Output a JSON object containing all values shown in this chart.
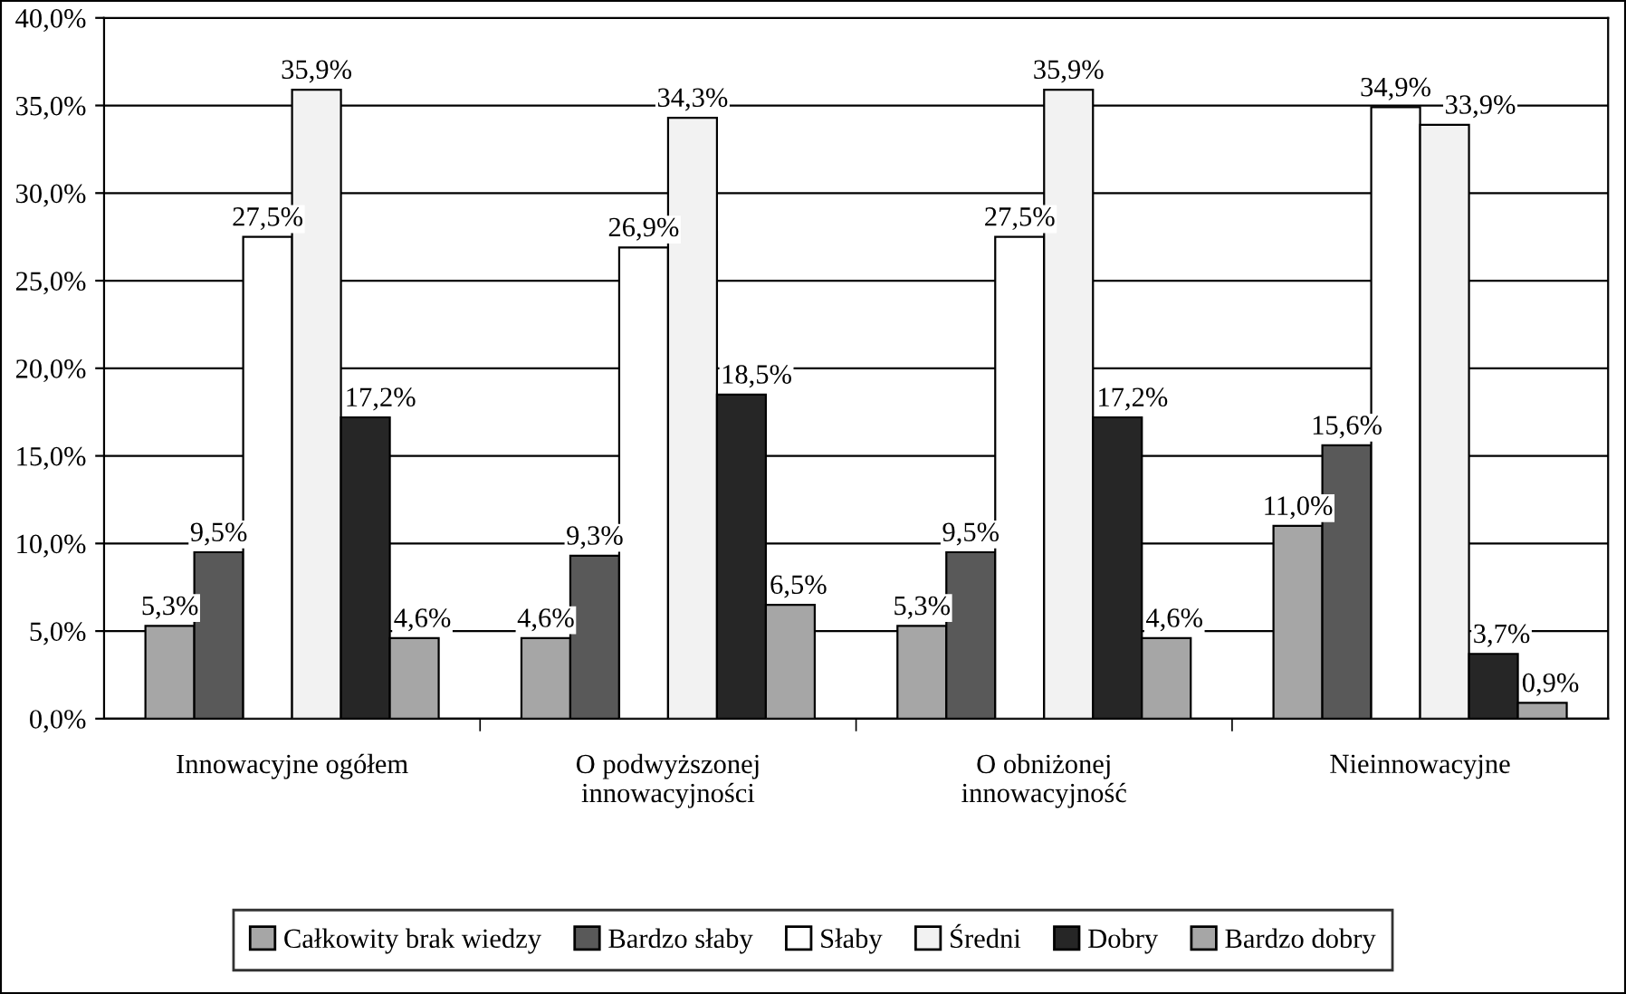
{
  "chart_data": {
    "type": "bar",
    "categories": [
      "Innowacyjne ogółem",
      "O podwyższonej\ninnowacyjności",
      "O obniżonej\ninnowacyjność",
      "Nieinnowacyjne"
    ],
    "series": [
      {
        "name": "Całkowity brak wiedzy",
        "color": "#a6a6a6",
        "values": [
          5.3,
          4.6,
          5.3,
          11.0
        ],
        "value_labels": [
          "5,3%",
          "4,6%",
          "5,3%",
          "11,0%"
        ]
      },
      {
        "name": "Bardzo słaby",
        "color": "#595959",
        "values": [
          9.5,
          9.3,
          9.5,
          15.6
        ],
        "value_labels": [
          "9,5%",
          "9,3%",
          "9,5%",
          "15,6%"
        ]
      },
      {
        "name": "Słaby",
        "color": "#ffffff",
        "values": [
          27.5,
          26.9,
          27.5,
          34.9
        ],
        "value_labels": [
          "27,5%",
          "26,9%",
          "27,5%",
          "34,9%"
        ]
      },
      {
        "name": "Średni",
        "color": "#f2f2f2",
        "values": [
          35.9,
          34.3,
          35.9,
          33.9
        ],
        "value_labels": [
          "35,9%",
          "34,3%",
          "35,9%",
          "33,9%"
        ]
      },
      {
        "name": "Dobry",
        "color": "#262626",
        "values": [
          17.2,
          18.5,
          17.2,
          3.7
        ],
        "value_labels": [
          "17,2%",
          "18,5%",
          "17,2%",
          "3,7%"
        ]
      },
      {
        "name": "Bardzo dobry",
        "color": "#a6a6a6",
        "values": [
          4.6,
          6.5,
          4.6,
          0.9
        ],
        "value_labels": [
          "4,6%",
          "6,5%",
          "4,6%",
          "0,9%"
        ]
      }
    ],
    "ylim": [
      0,
      40
    ],
    "yticks": [
      {
        "value": 0,
        "label": "0,0%"
      },
      {
        "value": 5,
        "label": "5,0%"
      },
      {
        "value": 10,
        "label": "10,0%"
      },
      {
        "value": 15,
        "label": "15,0%"
      },
      {
        "value": 20,
        "label": "20,0%"
      },
      {
        "value": 25,
        "label": "25,0%"
      },
      {
        "value": 30,
        "label": "30,0%"
      },
      {
        "value": 35,
        "label": "35,0%"
      },
      {
        "value": 40,
        "label": "40,0%"
      }
    ],
    "grid": "y",
    "legend": "bottom"
  }
}
